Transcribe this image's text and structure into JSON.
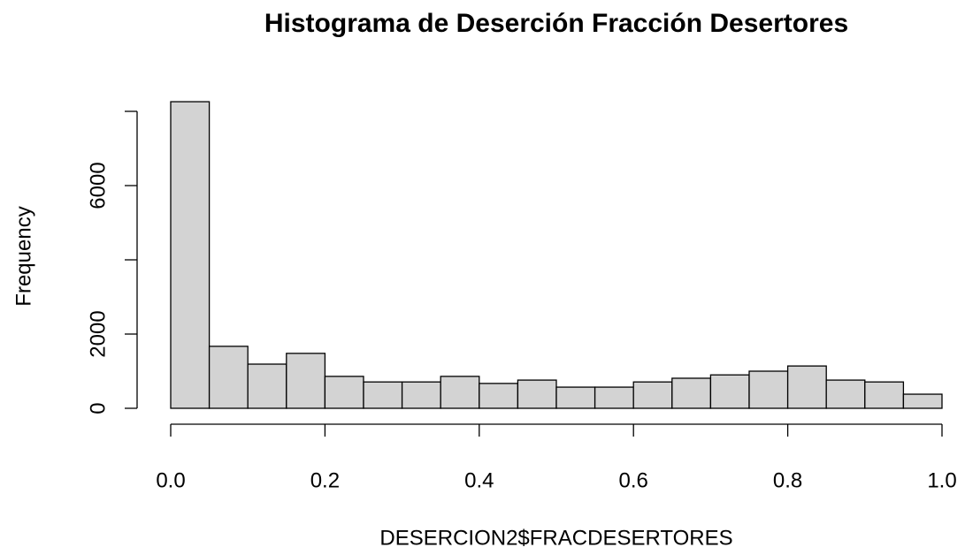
{
  "chart_data": {
    "type": "histogram",
    "title": "Histograma de Deserción Fracción Desertores",
    "x_label": "DESERCION2$FRACDESERTORES",
    "y_label": "Frequency",
    "bins": [
      0,
      0.05,
      0.1,
      0.15,
      0.2,
      0.25,
      0.3,
      0.35,
      0.4,
      0.45,
      0.5,
      0.55,
      0.6,
      0.65,
      0.7,
      0.75,
      0.8,
      0.85,
      0.9,
      0.95,
      1
    ],
    "values": [
      8260,
      1670,
      1190,
      1480,
      860,
      710,
      710,
      860,
      670,
      760,
      570,
      570,
      710,
      810,
      900,
      1000,
      1140,
      760,
      710,
      380
    ],
    "color": "#d3d3d3",
    "xlim": [
      0,
      1
    ],
    "xticks": [
      {
        "value": 0,
        "label": "0.0"
      },
      0.2,
      0.4,
      0.6,
      0.8,
      {
        "value": 1,
        "label": "1.0"
      }
    ],
    "ylim": [
      0,
      8500
    ],
    "yticks": [
      0,
      2000,
      {
        "value": 4000,
        "label": null
      },
      6000,
      {
        "value": 8000,
        "label": null
      }
    ]
  }
}
